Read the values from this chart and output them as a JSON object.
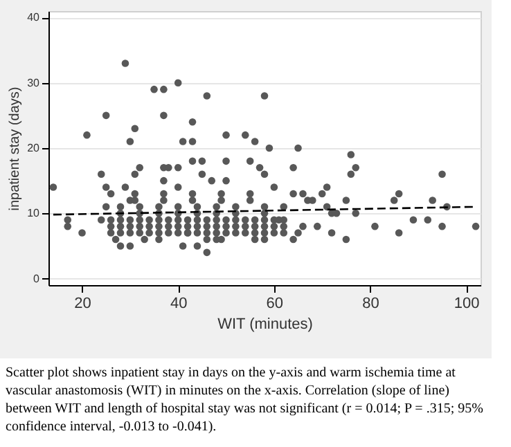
{
  "chart_data": {
    "type": "scatter",
    "xlabel": "WIT  (minutes)",
    "ylabel": "inpatient stay (days)",
    "xlim": [
      13,
      103
    ],
    "ylim": [
      -1,
      41
    ],
    "xticks": [
      20,
      40,
      60,
      80,
      100
    ],
    "yticks": [
      0,
      10,
      20,
      30,
      40
    ],
    "grid": "y",
    "marker": "circle",
    "annotations": [
      "Scatter plot shows inpatient stay in days on the y-axis and warm ischemia time at vascular anastomosis (WIT) in minutes on the x-axis. Correlation (slope of line) between WIT and length of hospital stay was not significant (r = 0.014; P = .315; 95% confidence interval, -0.013 to -0.041)."
    ],
    "series": [
      {
        "color": "#585858",
        "x": [
          14,
          17,
          17,
          20,
          21,
          24,
          24,
          25,
          25,
          25,
          26,
          29,
          29,
          30,
          30,
          30,
          28,
          31,
          31,
          32,
          35,
          37,
          37,
          37,
          38,
          37,
          40,
          40,
          40,
          41,
          41,
          43,
          43,
          43,
          44,
          45,
          45,
          46,
          46,
          47,
          50,
          50,
          50,
          54,
          55,
          56,
          57,
          58,
          58,
          59,
          60,
          64,
          65,
          66,
          67,
          68,
          70,
          71,
          71,
          72,
          72,
          73,
          75,
          75,
          76,
          76,
          77,
          77,
          81,
          85,
          86,
          86,
          89,
          92,
          93,
          95,
          95,
          96,
          102,
          64,
          65,
          66,
          69,
          62,
          64,
          61,
          56,
          58,
          49,
          48,
          42,
          36,
          33,
          27,
          46,
          26,
          28,
          30,
          32,
          34,
          36,
          38,
          40,
          42,
          44,
          46,
          48,
          50,
          52,
          54,
          56,
          58,
          60,
          62,
          26,
          28,
          30,
          32,
          34,
          36,
          38,
          40,
          42,
          44,
          46,
          48,
          50,
          52,
          54,
          56,
          58,
          60,
          62,
          26,
          28,
          30,
          32,
          34,
          36,
          38,
          40,
          42,
          44,
          46,
          48,
          50,
          52,
          54,
          56,
          58,
          60,
          62,
          28,
          32,
          36,
          40,
          44,
          48,
          52,
          58,
          28,
          32,
          36,
          40,
          44,
          48,
          52,
          58,
          31,
          37,
          43,
          49,
          55,
          31,
          37,
          43,
          49,
          55
        ],
        "values": [
          14,
          9,
          8,
          7,
          22,
          16,
          9,
          25,
          14,
          11,
          13,
          33,
          14,
          21,
          12,
          5,
          5,
          23,
          16,
          17,
          29,
          29,
          25,
          17,
          17,
          15,
          30,
          17,
          14,
          21,
          5,
          24,
          21,
          18,
          5,
          18,
          16,
          28,
          4,
          15,
          22,
          18,
          15,
          22,
          18,
          21,
          17,
          28,
          16,
          20,
          14,
          17,
          20,
          13,
          12,
          12,
          13,
          14,
          11,
          10,
          7,
          10,
          12,
          6,
          19,
          16,
          17,
          10,
          8,
          12,
          13,
          7,
          9,
          9,
          12,
          16,
          8,
          11,
          8,
          6,
          7,
          8,
          8,
          11,
          13,
          9,
          6,
          6,
          6,
          6,
          7,
          6,
          6,
          6,
          6,
          7,
          7,
          7,
          7,
          7,
          7,
          7,
          7,
          7,
          7,
          7,
          7,
          7,
          7,
          7,
          7,
          7,
          7,
          7,
          8,
          8,
          8,
          8,
          8,
          8,
          8,
          8,
          8,
          8,
          8,
          8,
          8,
          8,
          8,
          8,
          8,
          8,
          8,
          9,
          9,
          9,
          9,
          9,
          9,
          9,
          9,
          9,
          9,
          9,
          9,
          9,
          9,
          9,
          9,
          9,
          9,
          9,
          10,
          10,
          10,
          10,
          10,
          10,
          10,
          10,
          11,
          11,
          11,
          11,
          11,
          11,
          11,
          11,
          12,
          12,
          12,
          12,
          12,
          13,
          13,
          13,
          13,
          13
        ]
      },
      {
        "type": "line",
        "color": "#000000",
        "line_style": "dashed",
        "marker": "none",
        "x": [
          14,
          102
        ],
        "values": [
          9.8,
          11.0
        ]
      }
    ]
  }
}
